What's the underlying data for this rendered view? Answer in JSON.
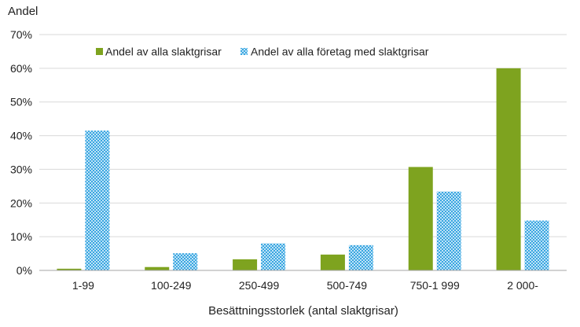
{
  "chart_data": {
    "type": "bar",
    "ylabel": "Andel",
    "xlabel": "Besättningsstorlek (antal slaktgrisar)",
    "categories": [
      "1-99",
      "100-249",
      "250-499",
      "500-749",
      "750-1 999",
      "2 000-"
    ],
    "ylim": [
      0,
      70
    ],
    "yticks": [
      0,
      10,
      20,
      30,
      40,
      50,
      60,
      70
    ],
    "ytick_suffix": "%",
    "grid": true,
    "legend_position": "top-center",
    "series": [
      {
        "name": "Andel av alla slaktgrisar",
        "values": [
          0.5,
          1.0,
          3.3,
          4.7,
          30.7,
          60.0
        ],
        "color": "#7ea31f",
        "pattern": "solid"
      },
      {
        "name": "Andel av alla företag med slaktgrisar",
        "values": [
          41.5,
          5.1,
          8.0,
          7.5,
          23.4,
          14.8
        ],
        "color": "#3aa6e0",
        "pattern": "checkered"
      }
    ]
  }
}
